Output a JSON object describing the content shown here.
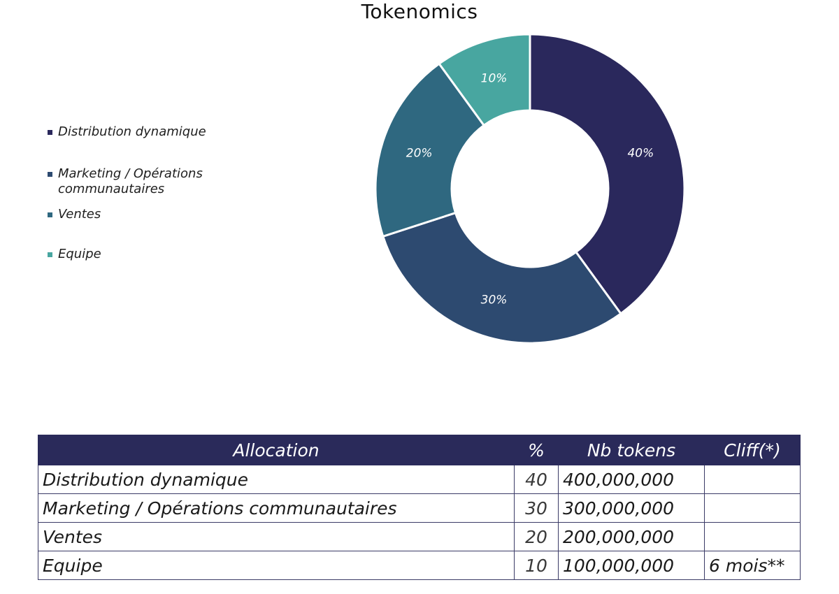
{
  "chart_data": {
    "type": "pie",
    "title": "Tokenomics",
    "donut": true,
    "categories": [
      "Distribution dynamique",
      "Marketing / Opérations communautaires",
      "Ventes",
      "Equipe"
    ],
    "values": [
      40,
      30,
      20,
      10
    ],
    "data_labels": [
      "40%",
      "30%",
      "20%",
      "10%"
    ],
    "colors": [
      "#2a285c",
      "#2d4a70",
      "#2f6880",
      "#48a6a0"
    ],
    "legend_position": "left"
  },
  "legend": {
    "items": [
      {
        "label": "Distribution dynamique",
        "color": "#2a285c"
      },
      {
        "label": "Marketing / Opérations communautaires",
        "color": "#2d4a70"
      },
      {
        "label": "Ventes",
        "color": "#2f6880"
      },
      {
        "label": "Equipe",
        "color": "#48a6a0"
      }
    ]
  },
  "table": {
    "headers": {
      "allocation": "Allocation",
      "pct": "%",
      "tokens": "Nb tokens",
      "cliff": "Cliff(*)"
    },
    "rows": [
      {
        "allocation": "Distribution dynamique",
        "pct": "40",
        "tokens": "400,000,000",
        "cliff": ""
      },
      {
        "allocation": "Marketing / Opérations communautaires",
        "pct": "30",
        "tokens": "300,000,000",
        "cliff": ""
      },
      {
        "allocation": "Ventes",
        "pct": "20",
        "tokens": "200,000,000",
        "cliff": ""
      },
      {
        "allocation": "Equipe",
        "pct": "10",
        "tokens": "100,000,000",
        "cliff": "6 mois**"
      }
    ]
  }
}
